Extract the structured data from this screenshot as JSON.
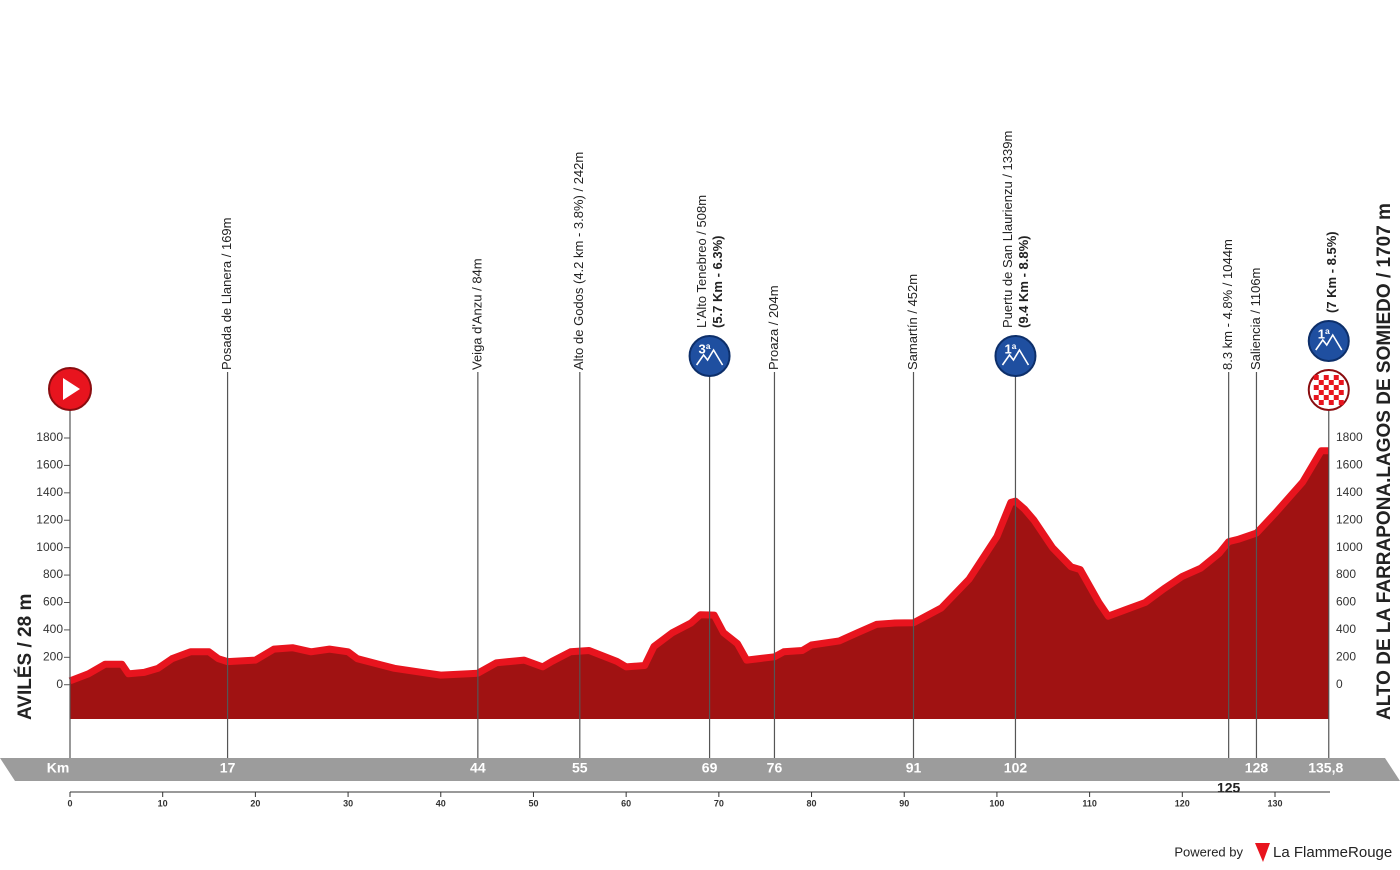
{
  "chart_data": {
    "type": "area",
    "start": {
      "label": "AVILÉS / 28 m"
    },
    "finish": {
      "km": {
        "value": 135.8,
        "label": "135,8"
      },
      "label": "ALTO DE LA FARRAPONA.LAGOS DE SOMIEDO / 1707 m",
      "note": "(7 Km - 8.5%)",
      "category": "1ª"
    },
    "waypoints": [
      {
        "km": 17,
        "label": "Posada de Llanera / 169m"
      },
      {
        "km": 44,
        "label": "Veiga d'Anzu / 84m"
      },
      {
        "km": 55,
        "label": "Alto de Godos (4.2 km - 3.8%) / 242m"
      },
      {
        "km": 69,
        "label": "L'Alto Tenebreo / 508m",
        "note": "(5.7 Km - 6.3%)",
        "category": "3ª"
      },
      {
        "km": 76,
        "label": "Proaza / 204m"
      },
      {
        "km": 91,
        "label": "Samartín / 452m"
      },
      {
        "km": 102,
        "label": "Puertu de San Llaurienzu / 1339m",
        "note": "(9.4 Km - 8.8%)",
        "category": "1ª"
      },
      {
        "km": 125,
        "label": "8.3 km - 4.8% / 1044m"
      },
      {
        "km": 128,
        "label": "Saliencia / 1106m"
      }
    ],
    "x_axis_label": "Km",
    "x": [
      0,
      2,
      3.8,
      5.6,
      6.3,
      8,
      9.5,
      11,
      13,
      15,
      16,
      17,
      20,
      22,
      24,
      26,
      28,
      30,
      31,
      35,
      38,
      40,
      43,
      44,
      46,
      49,
      51,
      52,
      54,
      56,
      59,
      60,
      62,
      63,
      65,
      67,
      68,
      69.5,
      70.5,
      72,
      73,
      76,
      77,
      79,
      80,
      83,
      85,
      87,
      89,
      91,
      94,
      97,
      100,
      101.5,
      102,
      103,
      104,
      106,
      108,
      109,
      111,
      112,
      114,
      116,
      118,
      120,
      122,
      124,
      125,
      126,
      128,
      130,
      133,
      135,
      135.8
    ],
    "values": [
      28,
      80,
      150,
      150,
      80,
      90,
      120,
      190,
      240,
      240,
      190,
      169,
      180,
      260,
      270,
      240,
      260,
      240,
      190,
      120,
      90,
      70,
      80,
      84,
      160,
      180,
      130,
      170,
      240,
      250,
      170,
      130,
      140,
      280,
      380,
      450,
      510,
      508,
      380,
      300,
      180,
      204,
      240,
      250,
      290,
      320,
      380,
      440,
      450,
      452,
      560,
      770,
      1080,
      1330,
      1339,
      1280,
      1200,
      1000,
      860,
      840,
      600,
      500,
      550,
      600,
      700,
      790,
      850,
      960,
      1044,
      1060,
      1106,
      1250,
      1480,
      1707,
      1707
    ],
    "xlim": [
      0,
      135.8
    ],
    "xticks": [
      0,
      10,
      20,
      30,
      40,
      50,
      60,
      70,
      80,
      90,
      100,
      110,
      120,
      130
    ],
    "ylim": [
      -250,
      1800
    ],
    "yticks": [
      0,
      200,
      400,
      600,
      800,
      1000,
      1200,
      1400,
      1600,
      1800
    ],
    "fill_color": "#a01212",
    "line_color": "#e8141e",
    "footer": {
      "powered": "Powered by",
      "brand": "La FlammeRouge"
    }
  }
}
